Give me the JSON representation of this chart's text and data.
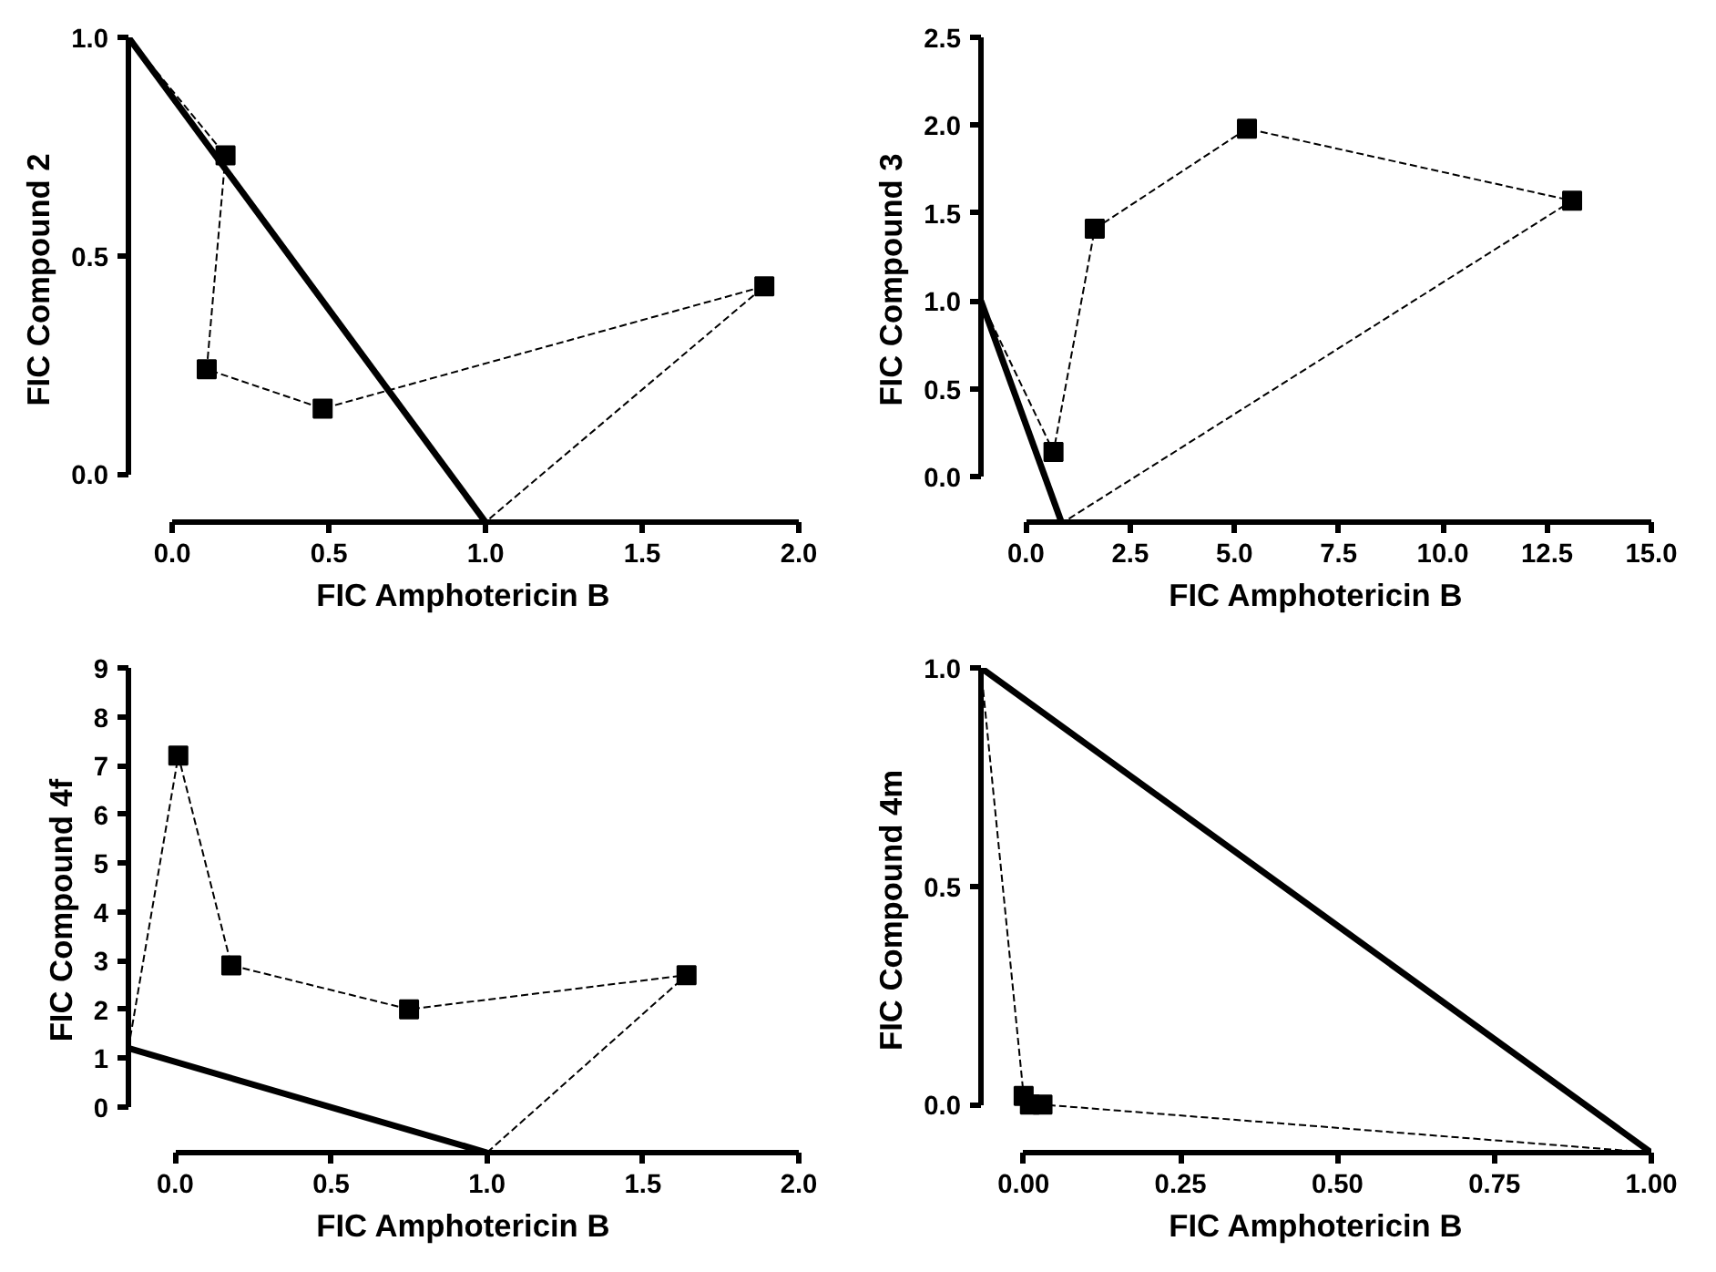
{
  "chart_data": [
    {
      "type": "line",
      "xlabel": "FIC Amphotericin B",
      "ylabel": "FIC Compound 2",
      "xlim": [
        -0.14,
        2.0
      ],
      "ylim": [
        -0.11,
        1.0
      ],
      "xticks": [
        {
          "value": 0,
          "label": "0.0"
        },
        {
          "value": 0.5,
          "label": "0.5"
        },
        {
          "value": 1,
          "label": "1.0"
        },
        {
          "value": 1.5,
          "label": "1.5"
        },
        {
          "value": 2,
          "label": "2.0"
        }
      ],
      "yticks": [
        {
          "value": 0,
          "label": "0.0"
        },
        {
          "value": 0.5,
          "label": "0.5"
        },
        {
          "value": 1,
          "label": "1.0"
        }
      ],
      "grid": false,
      "series": [
        {
          "line_style": "solid",
          "color": "#000000",
          "x": [
            -0.14,
            1.0
          ],
          "values": [
            1.0,
            -0.11
          ]
        },
        {
          "line_style": "dashed",
          "color": "#000000",
          "x": [
            -0.14,
            0.17,
            0.11,
            0.48,
            1.89,
            1.0
          ],
          "values": [
            1.0,
            0.73,
            0.24,
            0.15,
            0.43,
            -0.11
          ]
        },
        {
          "type": "scatter",
          "marker": "square",
          "color": "#000000",
          "x": [
            0.17,
            0.11,
            0.48,
            1.89
          ],
          "values": [
            0.73,
            0.24,
            0.15,
            0.43
          ]
        }
      ]
    },
    {
      "type": "line",
      "xlabel": "FIC Amphotericin B",
      "ylabel": "FIC Compound 3",
      "xlim": [
        -1.08,
        15.0
      ],
      "ylim": [
        -0.26,
        2.5
      ],
      "xticks": [
        {
          "value": 0,
          "label": "0.0"
        },
        {
          "value": 2.5,
          "label": "2.5"
        },
        {
          "value": 5,
          "label": "5.0"
        },
        {
          "value": 7.5,
          "label": "7.5"
        },
        {
          "value": 10,
          "label": "10.0"
        },
        {
          "value": 12.5,
          "label": "12.5"
        },
        {
          "value": 15,
          "label": "15.0"
        }
      ],
      "yticks": [
        {
          "value": 0,
          "label": "0.0"
        },
        {
          "value": 0.5,
          "label": "0.5"
        },
        {
          "value": 1,
          "label": "1.0"
        },
        {
          "value": 1.5,
          "label": "1.5"
        },
        {
          "value": 2,
          "label": "2.0"
        },
        {
          "value": 2.5,
          "label": "2.5"
        }
      ],
      "grid": false,
      "series": [
        {
          "line_style": "solid",
          "color": "#000000",
          "x": [
            -1.08,
            0.85
          ],
          "values": [
            1.0,
            -0.26
          ]
        },
        {
          "line_style": "dashed",
          "color": "#000000",
          "x": [
            -1.08,
            0.66,
            1.65,
            5.3,
            13.1,
            0.9
          ],
          "values": [
            1.0,
            0.14,
            1.41,
            1.98,
            1.57,
            -0.26
          ]
        },
        {
          "type": "scatter",
          "marker": "square",
          "color": "#000000",
          "x": [
            0.66,
            1.65,
            5.3,
            13.1
          ],
          "values": [
            0.14,
            1.41,
            1.98,
            1.57
          ]
        }
      ]
    },
    {
      "type": "line",
      "xlabel": "FIC Amphotericin B",
      "ylabel": "FIC Compound 4f",
      "xlim": [
        -0.15,
        2.0
      ],
      "ylim": [
        -0.94,
        9
      ],
      "xticks": [
        {
          "value": 0,
          "label": "0.0"
        },
        {
          "value": 0.5,
          "label": "0.5"
        },
        {
          "value": 1,
          "label": "1.0"
        },
        {
          "value": 1.5,
          "label": "1.5"
        },
        {
          "value": 2,
          "label": "2.0"
        }
      ],
      "yticks": [
        0,
        1,
        2,
        3,
        4,
        5,
        6,
        7,
        8,
        9
      ],
      "grid": false,
      "series": [
        {
          "line_style": "solid",
          "color": "#000000",
          "x": [
            -0.15,
            1.0
          ],
          "values": [
            1.2,
            -0.94
          ]
        },
        {
          "line_style": "dashed",
          "color": "#000000",
          "x": [
            -0.15,
            0.01,
            0.18,
            0.75,
            1.64,
            1.0
          ],
          "values": [
            1.2,
            7.2,
            2.9,
            2.0,
            2.7,
            -0.94
          ]
        },
        {
          "type": "scatter",
          "marker": "square",
          "color": "#000000",
          "x": [
            0.01,
            0.18,
            0.75,
            1.64
          ],
          "values": [
            7.2,
            2.9,
            2.0,
            2.7
          ]
        }
      ]
    },
    {
      "type": "line",
      "xlabel": "FIC Amphotericin B",
      "ylabel": "FIC Compound 4m",
      "xlim": [
        -0.068,
        1.0
      ],
      "ylim": [
        -0.11,
        1.0
      ],
      "xticks": [
        {
          "value": 0,
          "label": "0.00"
        },
        {
          "value": 0.25,
          "label": "0.25"
        },
        {
          "value": 0.5,
          "label": "0.50"
        },
        {
          "value": 0.75,
          "label": "0.75"
        },
        {
          "value": 1,
          "label": "1.00"
        }
      ],
      "yticks": [
        {
          "value": 0,
          "label": "0.0"
        },
        {
          "value": 0.5,
          "label": "0.5"
        },
        {
          "value": 1,
          "label": "1.0"
        }
      ],
      "grid": false,
      "series": [
        {
          "line_style": "solid",
          "color": "#000000",
          "x": [
            -0.068,
            1.0
          ],
          "values": [
            1.0,
            -0.11
          ]
        },
        {
          "line_style": "dashed",
          "color": "#000000",
          "x": [
            -0.068,
            0.0,
            0.01,
            0.03,
            1.0
          ],
          "values": [
            1.0,
            0.02,
            0.0,
            0.0,
            -0.11
          ]
        },
        {
          "type": "scatter",
          "marker": "square",
          "color": "#000000",
          "x": [
            0.0,
            0.01,
            0.03
          ],
          "values": [
            0.02,
            0.0,
            0.0
          ]
        }
      ]
    }
  ]
}
